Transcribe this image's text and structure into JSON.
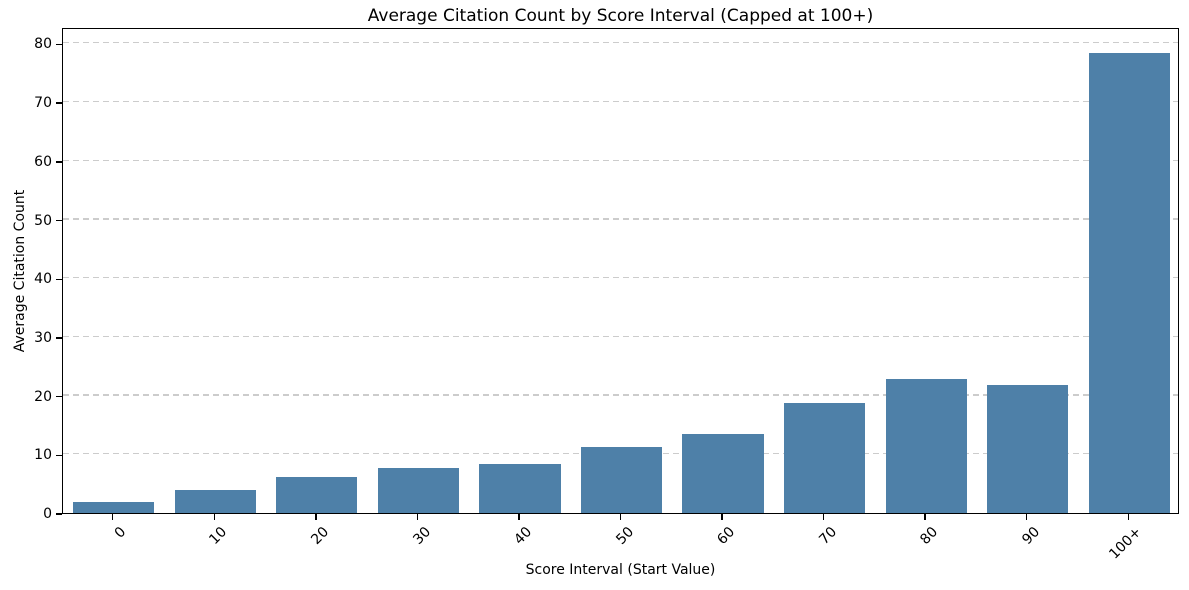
{
  "chart_data": {
    "type": "bar",
    "title": "Average Citation Count by Score Interval (Capped at 100+)",
    "xlabel": "Score Interval (Start Value)",
    "ylabel": "Average Citation Count",
    "categories": [
      "0",
      "10",
      "20",
      "30",
      "40",
      "50",
      "60",
      "70",
      "80",
      "90",
      "100+"
    ],
    "values": [
      1.9,
      4.0,
      6.1,
      7.6,
      8.4,
      11.3,
      13.4,
      18.8,
      22.8,
      21.8,
      78.4
    ],
    "yticks": [
      0,
      10,
      20,
      30,
      40,
      50,
      60,
      70,
      80
    ],
    "ylim": [
      0,
      82.8
    ],
    "bar_color": "#4e80a8",
    "bar_width_fraction": 0.8,
    "x_tick_rotation_deg": 45,
    "grid": "horizontal-dashed",
    "gridline_color": "#cccccc",
    "legend": "none",
    "background_color": "#ffffff",
    "text_color": "#000000"
  }
}
